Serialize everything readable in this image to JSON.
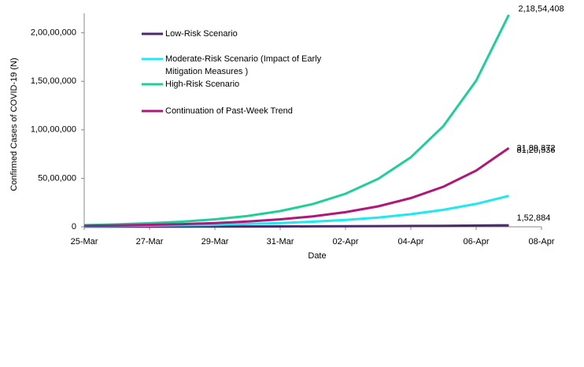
{
  "chart_data": {
    "type": "line",
    "x_label": "Date",
    "y_label": "Confirmed Cases of COVID-19 (N)",
    "x": [
      "25-Mar",
      "26-Mar",
      "27-Mar",
      "28-Mar",
      "29-Mar",
      "30-Mar",
      "31-Mar",
      "01-Apr",
      "02-Apr",
      "03-Apr",
      "04-Apr",
      "05-Apr",
      "06-Apr",
      "07-Apr"
    ],
    "xlim": [
      "25-Mar",
      "08-Apr"
    ],
    "xticks": [
      "25-Mar",
      "27-Mar",
      "29-Mar",
      "31-Mar",
      "02-Apr",
      "04-Apr",
      "06-Apr",
      "08-Apr"
    ],
    "ylim": [
      0,
      22000000
    ],
    "yticks": [
      0,
      {
        "value": 5000000,
        "label": "50,00,000"
      },
      {
        "value": 10000000,
        "label": "1,00,00,000"
      },
      {
        "value": 15000000,
        "label": "1,50,00,000"
      },
      {
        "value": 20000000,
        "label": "2,00,00,000"
      }
    ],
    "grid": false,
    "legend": "upper left",
    "series": [
      {
        "name": "Low-Risk Scenario",
        "color": "#4b2a6b",
        "values": [
          14289,
          17147,
          20577,
          24692,
          29630,
          35556,
          42667,
          51201,
          61441,
          73729,
          88475,
          106170,
          127403,
          152884
        ],
        "value_labels": [
          null,
          null,
          null,
          null,
          null,
          null,
          null,
          null,
          null,
          null,
          null,
          null,
          null,
          "1,52,884"
        ]
      },
      {
        "name": "Moderate-Risk Scenario (Impact of Early Mitigation Measures )",
        "color": "#1ee8f0",
        "values": [
          65000,
          90000,
          120000,
          160000,
          210000,
          290000,
          390000,
          530000,
          710000,
          960000,
          1300000,
          1750000,
          2360000,
          3189372
        ],
        "value_labels": [
          null,
          null,
          null,
          null,
          null,
          null,
          null,
          null,
          null,
          null,
          null,
          null,
          null,
          "31,89,372"
        ]
      },
      {
        "name": "High-Risk Scenario",
        "color": "#1fcf9a",
        "values": [
          170000,
          250000,
          370000,
          530000,
          770000,
          1120000,
          1620000,
          2350000,
          3410000,
          4940000,
          7170000,
          10400000,
          15070000,
          21854408
        ],
        "value_labels": [
          null,
          null,
          null,
          null,
          null,
          null,
          null,
          null,
          null,
          null,
          null,
          null,
          null,
          "2,18,54,408"
        ]
      },
      {
        "name": "Continuation of Past-Week Trend",
        "color": "#b0177a",
        "values": [
          100000,
          140000,
          200000,
          280000,
          390000,
          550000,
          770000,
          1080000,
          1510000,
          2110000,
          2960000,
          4140000,
          5800000,
          8120536
        ],
        "value_labels": [
          null,
          null,
          null,
          null,
          null,
          null,
          null,
          null,
          null,
          null,
          null,
          null,
          null,
          "81,20,536"
        ]
      }
    ]
  }
}
